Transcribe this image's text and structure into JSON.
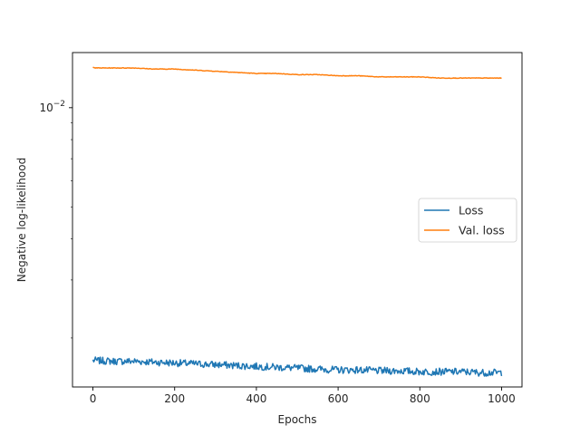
{
  "chart_data": {
    "type": "line",
    "title": "",
    "xlabel": "Epochs",
    "ylabel": "Negative log-likelihood",
    "xlim": [
      -50,
      1050
    ],
    "ylim": [
      0.00142,
      0.0147
    ],
    "yscale": "log",
    "x_ticks": [
      0,
      200,
      400,
      600,
      800,
      1000
    ],
    "y_ticks": [
      {
        "value": 0.01,
        "base": "10",
        "exponent": "−2"
      }
    ],
    "grid": false,
    "legend_position": "center-right",
    "series": [
      {
        "name": "Loss",
        "color": "#1f77b4",
        "x": [
          0,
          50,
          100,
          150,
          200,
          250,
          300,
          350,
          400,
          450,
          500,
          550,
          600,
          650,
          700,
          750,
          800,
          850,
          900,
          950,
          1000
        ],
        "y": [
          0.00171,
          0.0017,
          0.0017,
          0.00169,
          0.00168,
          0.00167,
          0.00166,
          0.00165,
          0.00164,
          0.00163,
          0.00162,
          0.00161,
          0.0016,
          0.0016,
          0.00159,
          0.00159,
          0.00158,
          0.00158,
          0.00158,
          0.00157,
          0.00157
        ]
      },
      {
        "name": "Val. loss",
        "color": "#ff7f0e",
        "x": [
          0,
          5,
          10,
          50,
          100,
          150,
          200,
          250,
          300,
          350,
          400,
          450,
          500,
          550,
          600,
          650,
          700,
          750,
          800,
          850,
          900,
          950,
          1000
        ],
        "y": [
          0.0133,
          0.0132,
          0.0132,
          0.0132,
          0.0132,
          0.0131,
          0.0131,
          0.013,
          0.0129,
          0.0128,
          0.0127,
          0.0127,
          0.0126,
          0.0126,
          0.0125,
          0.0125,
          0.0124,
          0.0124,
          0.0124,
          0.0123,
          0.0123,
          0.0123,
          0.0123
        ]
      }
    ]
  }
}
